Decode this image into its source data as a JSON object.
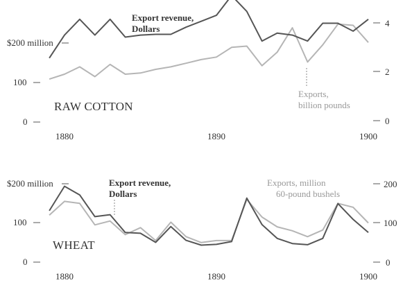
{
  "colors": {
    "revenue": "#555555",
    "exports": "#b5b5b5",
    "text": "#333333",
    "annotation_muted": "#999999"
  },
  "chart_data": [
    {
      "type": "line",
      "title": "RAW COTTON",
      "x": [
        1879,
        1880,
        1881,
        1882,
        1883,
        1884,
        1885,
        1886,
        1887,
        1888,
        1889,
        1890,
        1891,
        1892,
        1893,
        1894,
        1895,
        1896,
        1897,
        1898,
        1899,
        1900
      ],
      "series": [
        {
          "name": "Export revenue, Dollars",
          "axis": "left",
          "values": [
            162,
            220,
            260,
            220,
            260,
            215,
            220,
            222,
            222,
            240,
            255,
            270,
            320,
            280,
            205,
            225,
            220,
            205,
            250,
            250,
            230,
            260
          ]
        },
        {
          "name": "Exports, billion pounds",
          "axis": "right",
          "values": [
            1.7,
            1.9,
            2.2,
            1.8,
            2.3,
            1.9,
            1.95,
            2.1,
            2.2,
            2.35,
            2.5,
            2.6,
            3.0,
            3.05,
            2.25,
            2.8,
            3.8,
            2.4,
            3.1,
            3.95,
            3.9,
            3.2
          ]
        }
      ],
      "left_axis": {
        "ticks": [
          0,
          100,
          200
        ],
        "tick_labels": [
          "0",
          "100",
          "$200 million"
        ],
        "ylim": [
          0,
          336
        ]
      },
      "right_axis": {
        "ticks": [
          0,
          2,
          4
        ],
        "tick_labels": [
          "0",
          "2",
          "4"
        ],
        "ylim": [
          0,
          4.6
        ]
      },
      "x_ticks": [
        1880,
        1890,
        1900
      ],
      "annotations": [
        "Export revenue,",
        "Dollars",
        "Exports,",
        "billion pounds"
      ],
      "grid": false,
      "legend": "none"
    },
    {
      "type": "line",
      "title": "WHEAT",
      "x": [
        1879,
        1880,
        1881,
        1882,
        1883,
        1884,
        1885,
        1886,
        1887,
        1888,
        1889,
        1890,
        1891,
        1892,
        1893,
        1894,
        1895,
        1896,
        1897,
        1898,
        1899,
        1900
      ],
      "series": [
        {
          "name": "Export revenue, Dollars",
          "axis": "left",
          "values": [
            130,
            192,
            170,
            115,
            120,
            75,
            73,
            50,
            90,
            55,
            43,
            45,
            52,
            162,
            95,
            60,
            47,
            44,
            60,
            148,
            108,
            75
          ]
        },
        {
          "name": "Exports, million 60-pound bushels",
          "axis": "right",
          "values": [
            120,
            155,
            150,
            95,
            105,
            70,
            88,
            55,
            102,
            65,
            50,
            55,
            55,
            160,
            115,
            90,
            80,
            65,
            82,
            150,
            140,
            100
          ]
        }
      ],
      "left_axis": {
        "ticks": [
          0,
          100,
          200
        ],
        "tick_labels": [
          "0",
          "100",
          "$200 million"
        ],
        "ylim": [
          0,
          210
        ]
      },
      "right_axis": {
        "ticks": [
          0,
          100,
          200
        ],
        "tick_labels": [
          "0",
          "100",
          "200"
        ],
        "ylim": [
          0,
          210
        ]
      },
      "x_ticks": [
        1880,
        1890,
        1900
      ],
      "annotations": [
        "Export revenue,",
        "Dollars",
        "Exports, million",
        "60-pound bushels"
      ],
      "grid": false,
      "legend": "none"
    }
  ]
}
